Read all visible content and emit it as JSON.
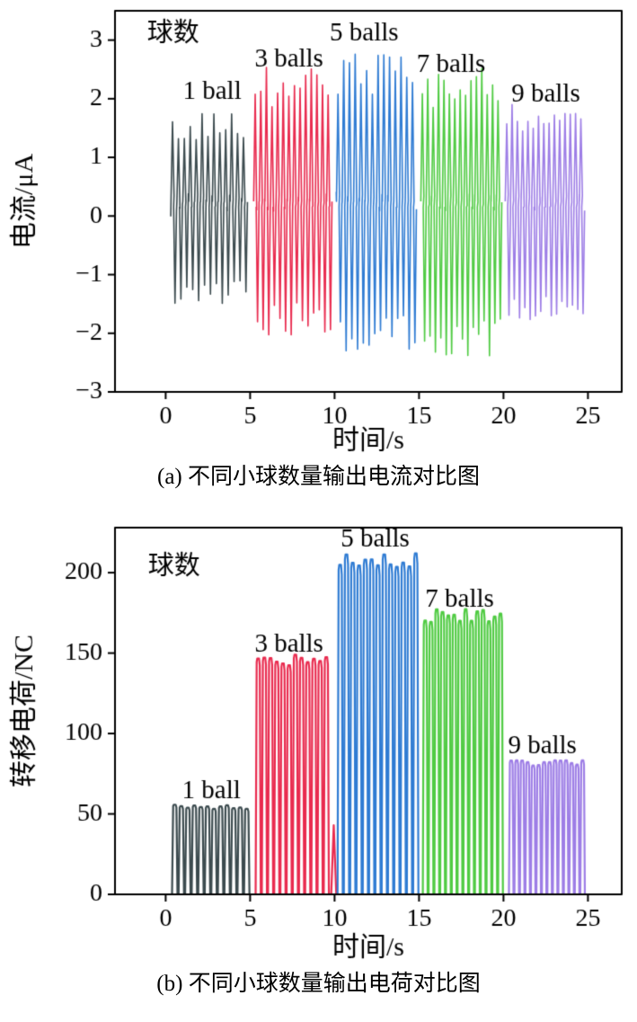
{
  "captions": {
    "a": "(a) 不同小球数量输出电流对比图",
    "b": "(b) 不同小球数量输出电荷对比图"
  },
  "chart_data": [
    {
      "id": "current-comparison",
      "type": "line",
      "kind": "current",
      "legend_label": "球数",
      "legend_pos": [
        0.45,
        2.98
      ],
      "xlabel": "时间/s",
      "ylabel": "电流/μA",
      "xlim": [
        -3,
        27
      ],
      "ylim": [
        -3,
        3.5
      ],
      "xticks": [
        0,
        5,
        10,
        15,
        20,
        25
      ],
      "yticks": [
        -3,
        -2,
        -1,
        0,
        1,
        2,
        3
      ],
      "baseline": 0.2,
      "series": [
        {
          "name": "1 ball",
          "color": "#3b4a4e",
          "t_start": 0.3,
          "t_end": 4.85,
          "pulses": 13,
          "peak_pos": 1.75,
          "peak_neg": -1.5,
          "label_pos": [
            2.75,
            2.0
          ]
        },
        {
          "name": "3 balls",
          "color": "#e92a4e",
          "t_start": 5.2,
          "t_end": 9.85,
          "pulses": 14,
          "peak_pos": 2.55,
          "peak_neg": -2.05,
          "label_pos": [
            7.3,
            2.55
          ]
        },
        {
          "name": "5 balls",
          "color": "#2e7bd3",
          "t_start": 10.1,
          "t_end": 14.85,
          "pulses": 14,
          "peak_pos": 2.8,
          "peak_neg": -2.3,
          "label_pos": [
            11.75,
            3.0
          ]
        },
        {
          "name": "7 balls",
          "color": "#4fcb42",
          "t_start": 15.1,
          "t_end": 19.9,
          "pulses": 15,
          "peak_pos": 2.55,
          "peak_neg": -2.4,
          "label_pos": [
            16.9,
            2.45
          ]
        },
        {
          "name": "9 balls",
          "color": "#9d7de6",
          "t_start": 20.1,
          "t_end": 24.8,
          "pulses": 15,
          "peak_pos": 1.95,
          "peak_neg": -1.8,
          "label_pos": [
            22.5,
            1.95
          ]
        }
      ]
    },
    {
      "id": "charge-comparison",
      "type": "line",
      "kind": "charge",
      "legend_label": "球数",
      "legend_pos": [
        0.5,
        199
      ],
      "xlabel": "时间/s",
      "ylabel": "转移电荷/NC",
      "xlim": [
        -3,
        27
      ],
      "ylim": [
        0,
        228
      ],
      "xticks": [
        0,
        5,
        10,
        15,
        20,
        25
      ],
      "yticks": [
        0,
        50,
        100,
        150,
        200
      ],
      "series": [
        {
          "name": "1 ball",
          "color": "#3b4a4e",
          "t_start": 0.35,
          "t_end": 5.0,
          "pulses": 12,
          "value": 55,
          "label_pos": [
            2.7,
            60
          ]
        },
        {
          "name": "3 balls",
          "color": "#e92a4e",
          "t_start": 5.3,
          "t_end": 9.7,
          "pulses": 12,
          "value": 147,
          "partial_value": 43,
          "label_pos": [
            7.3,
            151
          ]
        },
        {
          "name": "5 balls",
          "color": "#2e7bd3",
          "t_start": 10.15,
          "t_end": 15.0,
          "pulses": 13,
          "value": 211,
          "label_pos": [
            12.4,
            216
          ]
        },
        {
          "name": "7 balls",
          "color": "#4fcb42",
          "t_start": 15.2,
          "t_end": 20.0,
          "pulses": 14,
          "value": 175,
          "label_pos": [
            17.4,
            179
          ]
        },
        {
          "name": "9 balls",
          "color": "#9d7de6",
          "t_start": 20.3,
          "t_end": 24.85,
          "pulses": 14,
          "value": 83,
          "label_pos": [
            22.3,
            88
          ]
        }
      ]
    }
  ]
}
